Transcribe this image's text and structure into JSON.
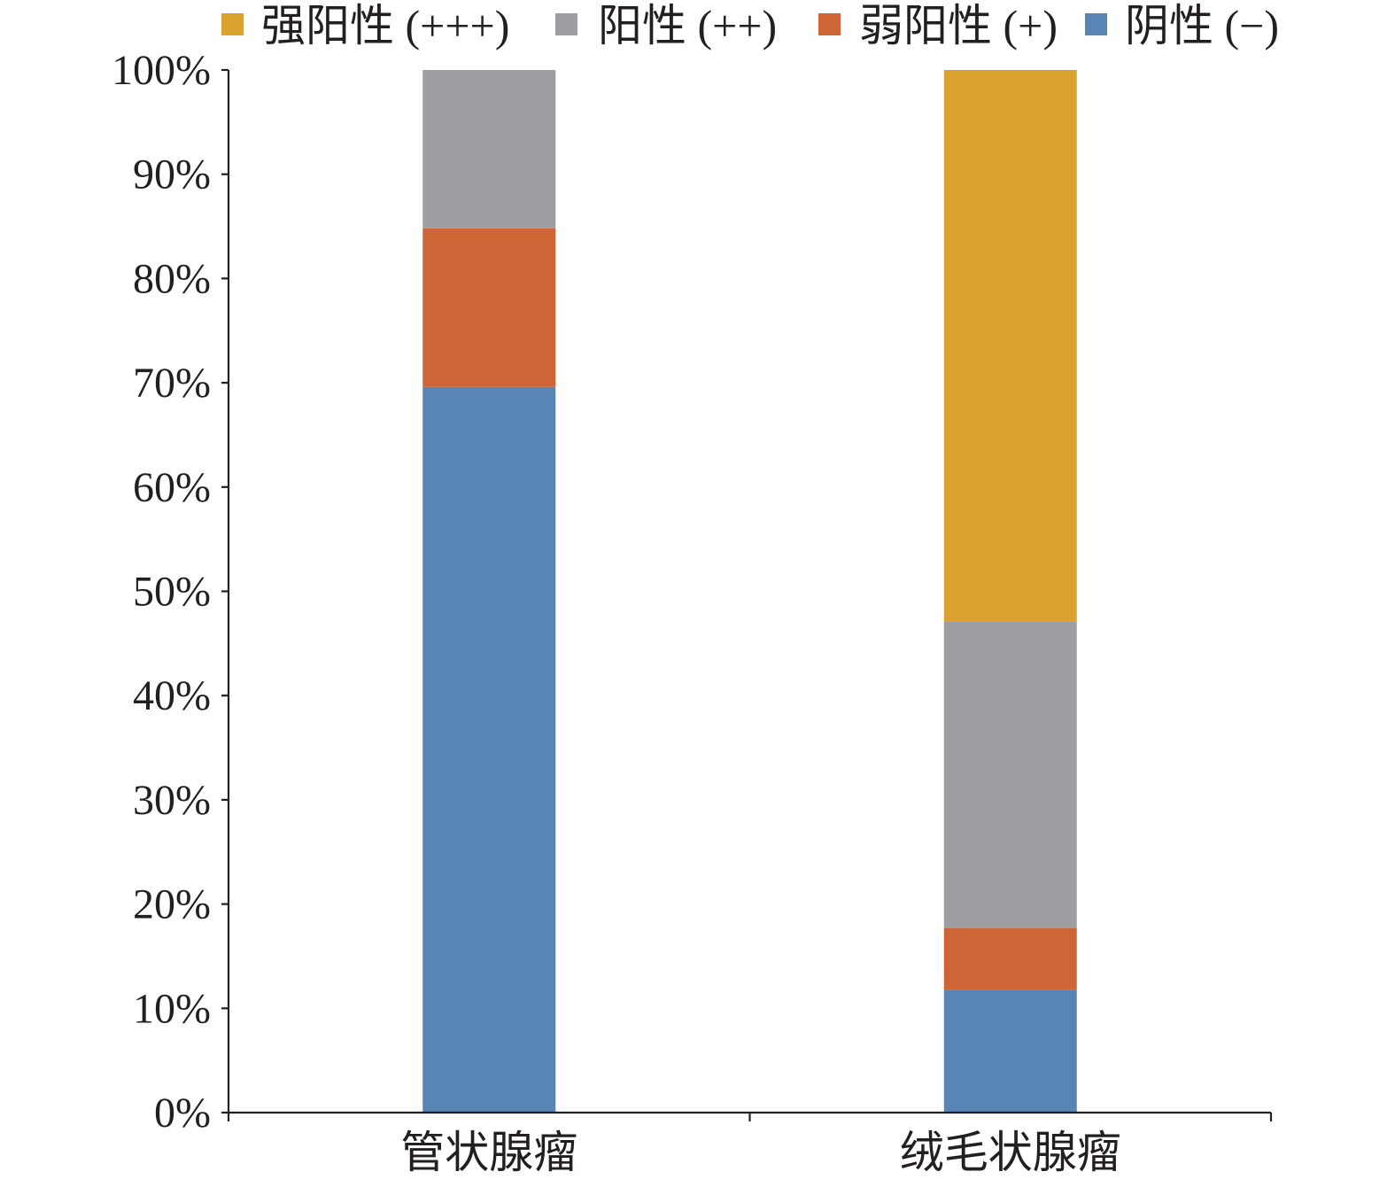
{
  "chart_data": {
    "type": "bar",
    "stacked": true,
    "categories": [
      "管状腺瘤",
      "绒毛状腺瘤"
    ],
    "series": [
      {
        "name": "强阳性 (+++)",
        "color": "#DBA22F",
        "values": [
          0,
          52.9
        ]
      },
      {
        "name": "阳性 (++)",
        "color": "#9D9EA2",
        "values": [
          15.2,
          29.4
        ]
      },
      {
        "name": "弱阳性 (+)",
        "color": "#CF6437",
        "values": [
          15.2,
          5.9
        ]
      },
      {
        "name": "阴性 (−)",
        "color": "#5884B6",
        "values": [
          69.6,
          11.8
        ]
      }
    ],
    "ylim": [
      0,
      100
    ],
    "ytick_labels": [
      "0%",
      "10%",
      "20%",
      "30%",
      "40%",
      "50%",
      "60%",
      "70%",
      "80%",
      "90%",
      "100%"
    ],
    "legend_position": "top",
    "grid": false
  }
}
